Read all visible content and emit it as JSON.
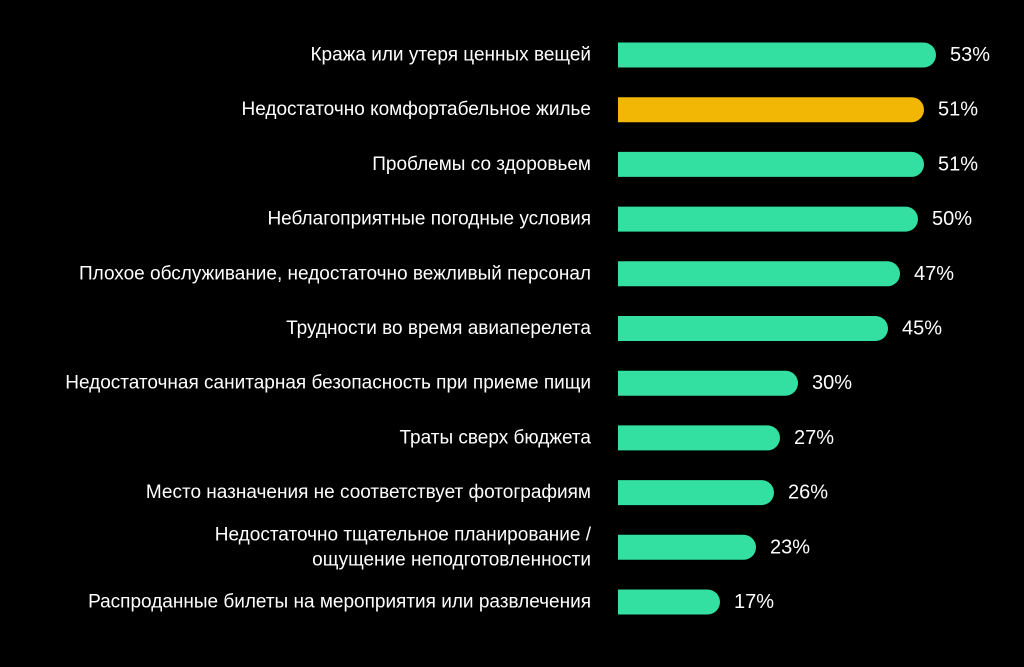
{
  "chart_data": {
    "type": "bar",
    "orientation": "horizontal",
    "categories": [
      [
        "Кража или утеря ценных вещей"
      ],
      [
        "Недостаточно комфортабельное жилье"
      ],
      [
        "Проблемы со здоровьем"
      ],
      [
        "Неблагоприятные погодные условия"
      ],
      [
        "Плохое обслуживание, недостаточно вежливый персонал"
      ],
      [
        "Трудности во время авиаперелета"
      ],
      [
        "Недостаточная санитарная безопасность при приеме пищи"
      ],
      [
        "Траты сверх бюджета"
      ],
      [
        "Место назначения не соответствует фотографиям"
      ],
      [
        "Недостаточно тщательное планирование /",
        "ощущение неподготовленности"
      ],
      [
        "Распроданные билеты на мероприятия или развлечения"
      ]
    ],
    "values": [
      53,
      51,
      51,
      50,
      47,
      45,
      30,
      27,
      26,
      23,
      17
    ],
    "value_labels": [
      "53%",
      "51%",
      "51%",
      "50%",
      "47%",
      "45%",
      "30%",
      "27%",
      "26%",
      "23%",
      "17%"
    ],
    "highlight_index": 1,
    "colors": {
      "bar": "#33e0a1",
      "highlight": "#f2b705",
      "background": "#000000",
      "text": "#ffffff"
    },
    "title": "",
    "xlabel": "",
    "ylabel": "",
    "xlim": [
      0,
      53
    ],
    "grid": false,
    "legend": "none"
  }
}
